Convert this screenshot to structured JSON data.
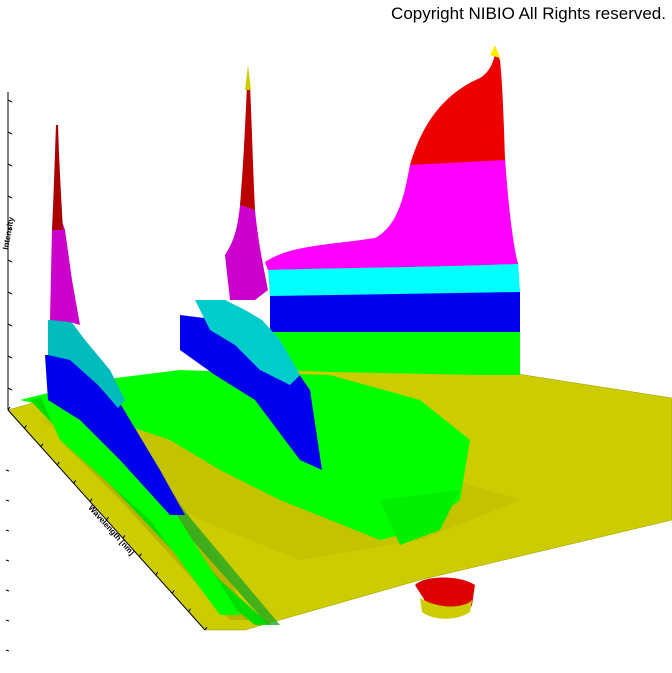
{
  "copyright": "Copyright NIBIO All Rights reserved.",
  "chart_data": {
    "type": "surface3d",
    "title": "",
    "view": "3d-perspective",
    "axes": {
      "wavelength_label": "Wavelength [nm]",
      "intensity_label": "Intensity",
      "wavelength_tick_start": "",
      "wavelength_tick_end": ""
    },
    "color_bands": [
      "#cccc00",
      "#00ff00",
      "#0000ee",
      "#00ffff",
      "#ff00ff",
      "#ff0000"
    ],
    "peaks": [
      {
        "name": "left",
        "relative_height": 0.72
      },
      {
        "name": "middle",
        "relative_height": 0.88
      },
      {
        "name": "right",
        "relative_height": 0.93
      }
    ]
  }
}
